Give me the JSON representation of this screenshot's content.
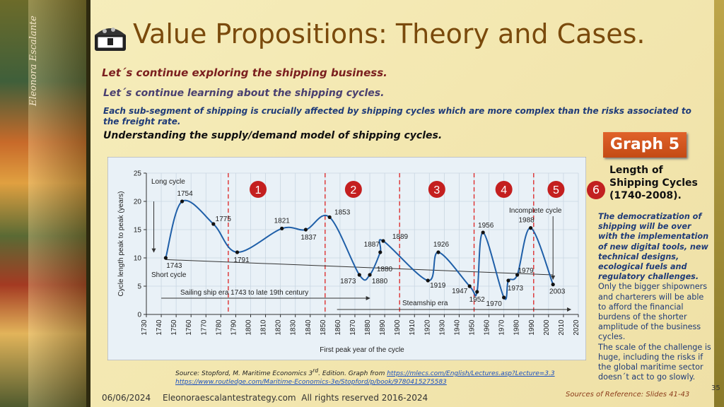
{
  "header": {
    "title": "Value Propositions: Theory and Cases.",
    "lines": [
      "Let´s continue exploring the shipping business.",
      "Let´s continue learning about the shipping cycles.",
      "Each sub-segment of shipping is crucially affected by shipping cycles which are more complex than the risks associated to the freight rate.",
      "Understanding the supply/demand model of shipping cycles."
    ],
    "signature": "Eleonora Escalante"
  },
  "chart": {
    "type": "line",
    "xlabel": "First peak year of the cycle",
    "ylabel": "Cycle length peak to peak (years)",
    "x": [
      1743,
      1754,
      1775,
      1791,
      1821,
      1837,
      1853,
      1873,
      1880,
      1887,
      1889,
      1919,
      1926,
      1947,
      1952,
      1956,
      1970,
      1973,
      1979,
      1988,
      2003
    ],
    "y": [
      10,
      20,
      16,
      11,
      15.2,
      15,
      17.2,
      7,
      7,
      11,
      13,
      6,
      11,
      5,
      4,
      14.5,
      3,
      6,
      7,
      15.3,
      5.3
    ],
    "color": "#1f5fa8",
    "xlim": [
      1730,
      2020
    ],
    "xticks": [
      1730,
      1740,
      1750,
      1760,
      1770,
      1780,
      1790,
      1800,
      1810,
      1820,
      1830,
      1840,
      1850,
      1860,
      1870,
      1880,
      1890,
      1900,
      1910,
      1920,
      1930,
      1940,
      1950,
      1960,
      1970,
      1980,
      1990,
      2000,
      2010,
      2020
    ],
    "ylim": [
      0,
      25
    ],
    "yticks": [
      0,
      5,
      10,
      15,
      20,
      25
    ],
    "grid": true,
    "trend": {
      "x": [
        1743,
        2003
      ],
      "y": [
        9.7,
        7
      ]
    },
    "dividers": [
      1785,
      1850,
      1900,
      1950,
      1990
    ],
    "cycles": [
      "1",
      "2",
      "3",
      "4",
      "5"
    ],
    "annotations": [
      "Long cycle",
      "Short cycle",
      "Incomplete cycle",
      "Sailing ship era 1743 to late 19th century",
      "Steamship era",
      "1880"
    ]
  },
  "sidebar": {
    "badge": "Graph 5",
    "number": "6",
    "heading": "Length of Shipping Cycles (1740-2008).",
    "bold_text": "The democratization of shipping will be over with the implementation of new digital tools, new technical designs, ecological fuels and regulatory challenges.",
    "text": [
      "Only the bigger shipowners and charterers will be able to afford the financial burdens of the shorter amplitude of the business cycles.",
      "The scale of the challenge is huge, including the risks if the global maritime sector doesn´t act to go slowly."
    ]
  },
  "footer": {
    "source": [
      "Source: Stopford, M. Maritime Economics 3",
      "rd",
      ". Edition. Graph from "
    ],
    "link1": "https://mlecs.com/English/Lectures.asp?Lecture=3.3",
    "link2": "https://www.routledge.com/Maritime-Economics-3e/Stopford/p/book/9780415275583",
    "date": "06/06/2024",
    "copyright": "Eleonoraescalantestrategy.com  All rights reserved 2016-2024",
    "references": "Sources of Reference: Slides 41-43",
    "page": "35"
  }
}
